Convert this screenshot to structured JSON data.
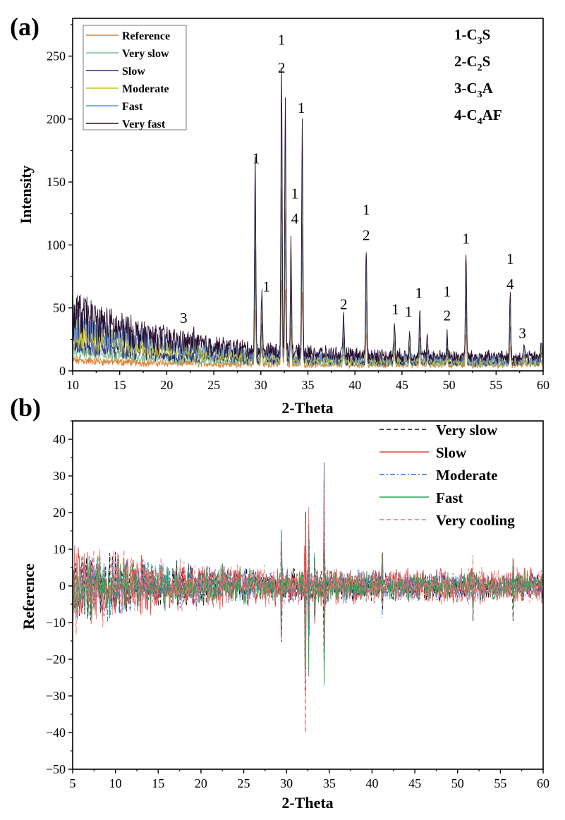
{
  "chart_data": [
    {
      "type": "line",
      "panel_label": "(a)",
      "xlabel": "2-Theta",
      "ylabel": "Intensity",
      "xlim": [
        10,
        60
      ],
      "ylim": [
        0,
        280
      ],
      "xticks": [
        "10",
        "15",
        "20",
        "25",
        "30",
        "35",
        "40",
        "45",
        "50",
        "55",
        "60"
      ],
      "yticks": [
        "0",
        "50",
        "100",
        "150",
        "200",
        "250"
      ],
      "legend": [
        "Reference",
        "Very slow",
        "Slow",
        "Moderate",
        "Fast",
        "Very fast"
      ],
      "phase_key": [
        {
          "num": "1-C",
          "sub": "3",
          "rest": "S"
        },
        {
          "num": "2-C",
          "sub": "2",
          "rest": "S"
        },
        {
          "num": "3-C",
          "sub": "3",
          "rest": "A"
        },
        {
          "num": "4-C",
          "sub": "4",
          "rest": "AF"
        }
      ],
      "peak_labels": [
        {
          "x": 21.8,
          "y": 38,
          "text": "3"
        },
        {
          "x": 29.5,
          "y": 165,
          "text": "1"
        },
        {
          "x": 30.6,
          "y": 63,
          "text": "1"
        },
        {
          "x": 32.2,
          "y": 259,
          "text": "1"
        },
        {
          "x": 32.2,
          "y": 237,
          "text": "2"
        },
        {
          "x": 34.3,
          "y": 205,
          "text": "1"
        },
        {
          "x": 33.6,
          "y": 137,
          "text": "1"
        },
        {
          "x": 33.6,
          "y": 117,
          "text": "4"
        },
        {
          "x": 38.8,
          "y": 49,
          "text": "2"
        },
        {
          "x": 41.2,
          "y": 124,
          "text": "1"
        },
        {
          "x": 41.2,
          "y": 104,
          "text": "2"
        },
        {
          "x": 44.3,
          "y": 45,
          "text": "1"
        },
        {
          "x": 45.7,
          "y": 43,
          "text": "1"
        },
        {
          "x": 46.8,
          "y": 58,
          "text": "1"
        },
        {
          "x": 49.8,
          "y": 59,
          "text": "1"
        },
        {
          "x": 49.8,
          "y": 40,
          "text": "2"
        },
        {
          "x": 51.8,
          "y": 101,
          "text": "1"
        },
        {
          "x": 56.5,
          "y": 85,
          "text": "1"
        },
        {
          "x": 56.5,
          "y": 65,
          "text": "4"
        },
        {
          "x": 57.8,
          "y": 26,
          "text": "3"
        }
      ],
      "peaks": [
        {
          "x": 22.9,
          "h": 8
        },
        {
          "x": 29.4,
          "h": 150
        },
        {
          "x": 30.1,
          "h": 50
        },
        {
          "x": 32.2,
          "h": 225
        },
        {
          "x": 32.6,
          "h": 205
        },
        {
          "x": 33.2,
          "h": 90
        },
        {
          "x": 34.4,
          "h": 185
        },
        {
          "x": 38.8,
          "h": 30
        },
        {
          "x": 41.2,
          "h": 85
        },
        {
          "x": 44.2,
          "h": 28
        },
        {
          "x": 45.8,
          "h": 22
        },
        {
          "x": 46.9,
          "h": 35
        },
        {
          "x": 47.7,
          "h": 15
        },
        {
          "x": 49.8,
          "h": 18
        },
        {
          "x": 51.8,
          "h": 85
        },
        {
          "x": 56.5,
          "h": 50
        },
        {
          "x": 58.0,
          "h": 10
        },
        {
          "x": 59.8,
          "h": 15
        }
      ],
      "series": [
        {
          "name": "Reference",
          "color": "#e07b2a",
          "scale": 0.3,
          "base_left": 7,
          "base_right": 3
        },
        {
          "name": "Very slow",
          "color": "#7fbf8f",
          "scale": 0.45,
          "base_left": 14,
          "base_right": 4
        },
        {
          "name": "Slow",
          "color": "#2b2f7a",
          "scale": 0.6,
          "base_left": 22,
          "base_right": 5
        },
        {
          "name": "Moderate",
          "color": "#c7c41c",
          "scale": 0.75,
          "base_left": 30,
          "base_right": 6
        },
        {
          "name": "Fast",
          "color": "#5f8fd6",
          "scale": 0.88,
          "base_left": 36,
          "base_right": 7
        },
        {
          "name": "Very fast",
          "color": "#2a0f2f",
          "scale": 1.0,
          "base_left": 44,
          "base_right": 9
        }
      ]
    },
    {
      "type": "line",
      "panel_label": "(b)",
      "xlabel": "2-Theta",
      "ylabel": "Reference",
      "xlim": [
        5,
        60
      ],
      "ylim": [
        -50,
        45
      ],
      "xticks": [
        "5",
        "10",
        "15",
        "20",
        "25",
        "30",
        "35",
        "40",
        "45",
        "50",
        "55",
        "60"
      ],
      "yticks": [
        "−50",
        "−40",
        "−30",
        "−20",
        "−10",
        "0",
        "10",
        "20",
        "30",
        "40"
      ],
      "ytick_values": [
        -50,
        -40,
        -30,
        -20,
        -10,
        0,
        10,
        20,
        30,
        40
      ],
      "legend": [
        "Very slow",
        "Slow",
        "Moderate",
        "Fast",
        "Very cooling"
      ],
      "spikes": [
        {
          "x": 29.4,
          "amp": 20
        },
        {
          "x": 32.2,
          "amp": 36
        },
        {
          "x": 32.6,
          "amp": 28
        },
        {
          "x": 33.3,
          "amp": 14
        },
        {
          "x": 34.4,
          "amp": 34
        },
        {
          "x": 41.2,
          "amp": 15
        },
        {
          "x": 51.8,
          "amp": 10
        },
        {
          "x": 56.5,
          "amp": 12
        }
      ],
      "series": [
        {
          "name": "Very slow",
          "color": "#111111",
          "dash": "6,4",
          "amp": 7
        },
        {
          "name": "Slow",
          "color": "#e8413f",
          "dash": "",
          "amp": 8
        },
        {
          "name": "Moderate",
          "color": "#2d6fd6",
          "dash": "7,3,2,3",
          "amp": 7
        },
        {
          "name": "Fast",
          "color": "#2aa352",
          "dash": "",
          "amp": 7
        },
        {
          "name": "Very cooling",
          "color": "#f07070",
          "dash": "6,4",
          "amp": 8
        }
      ]
    }
  ]
}
